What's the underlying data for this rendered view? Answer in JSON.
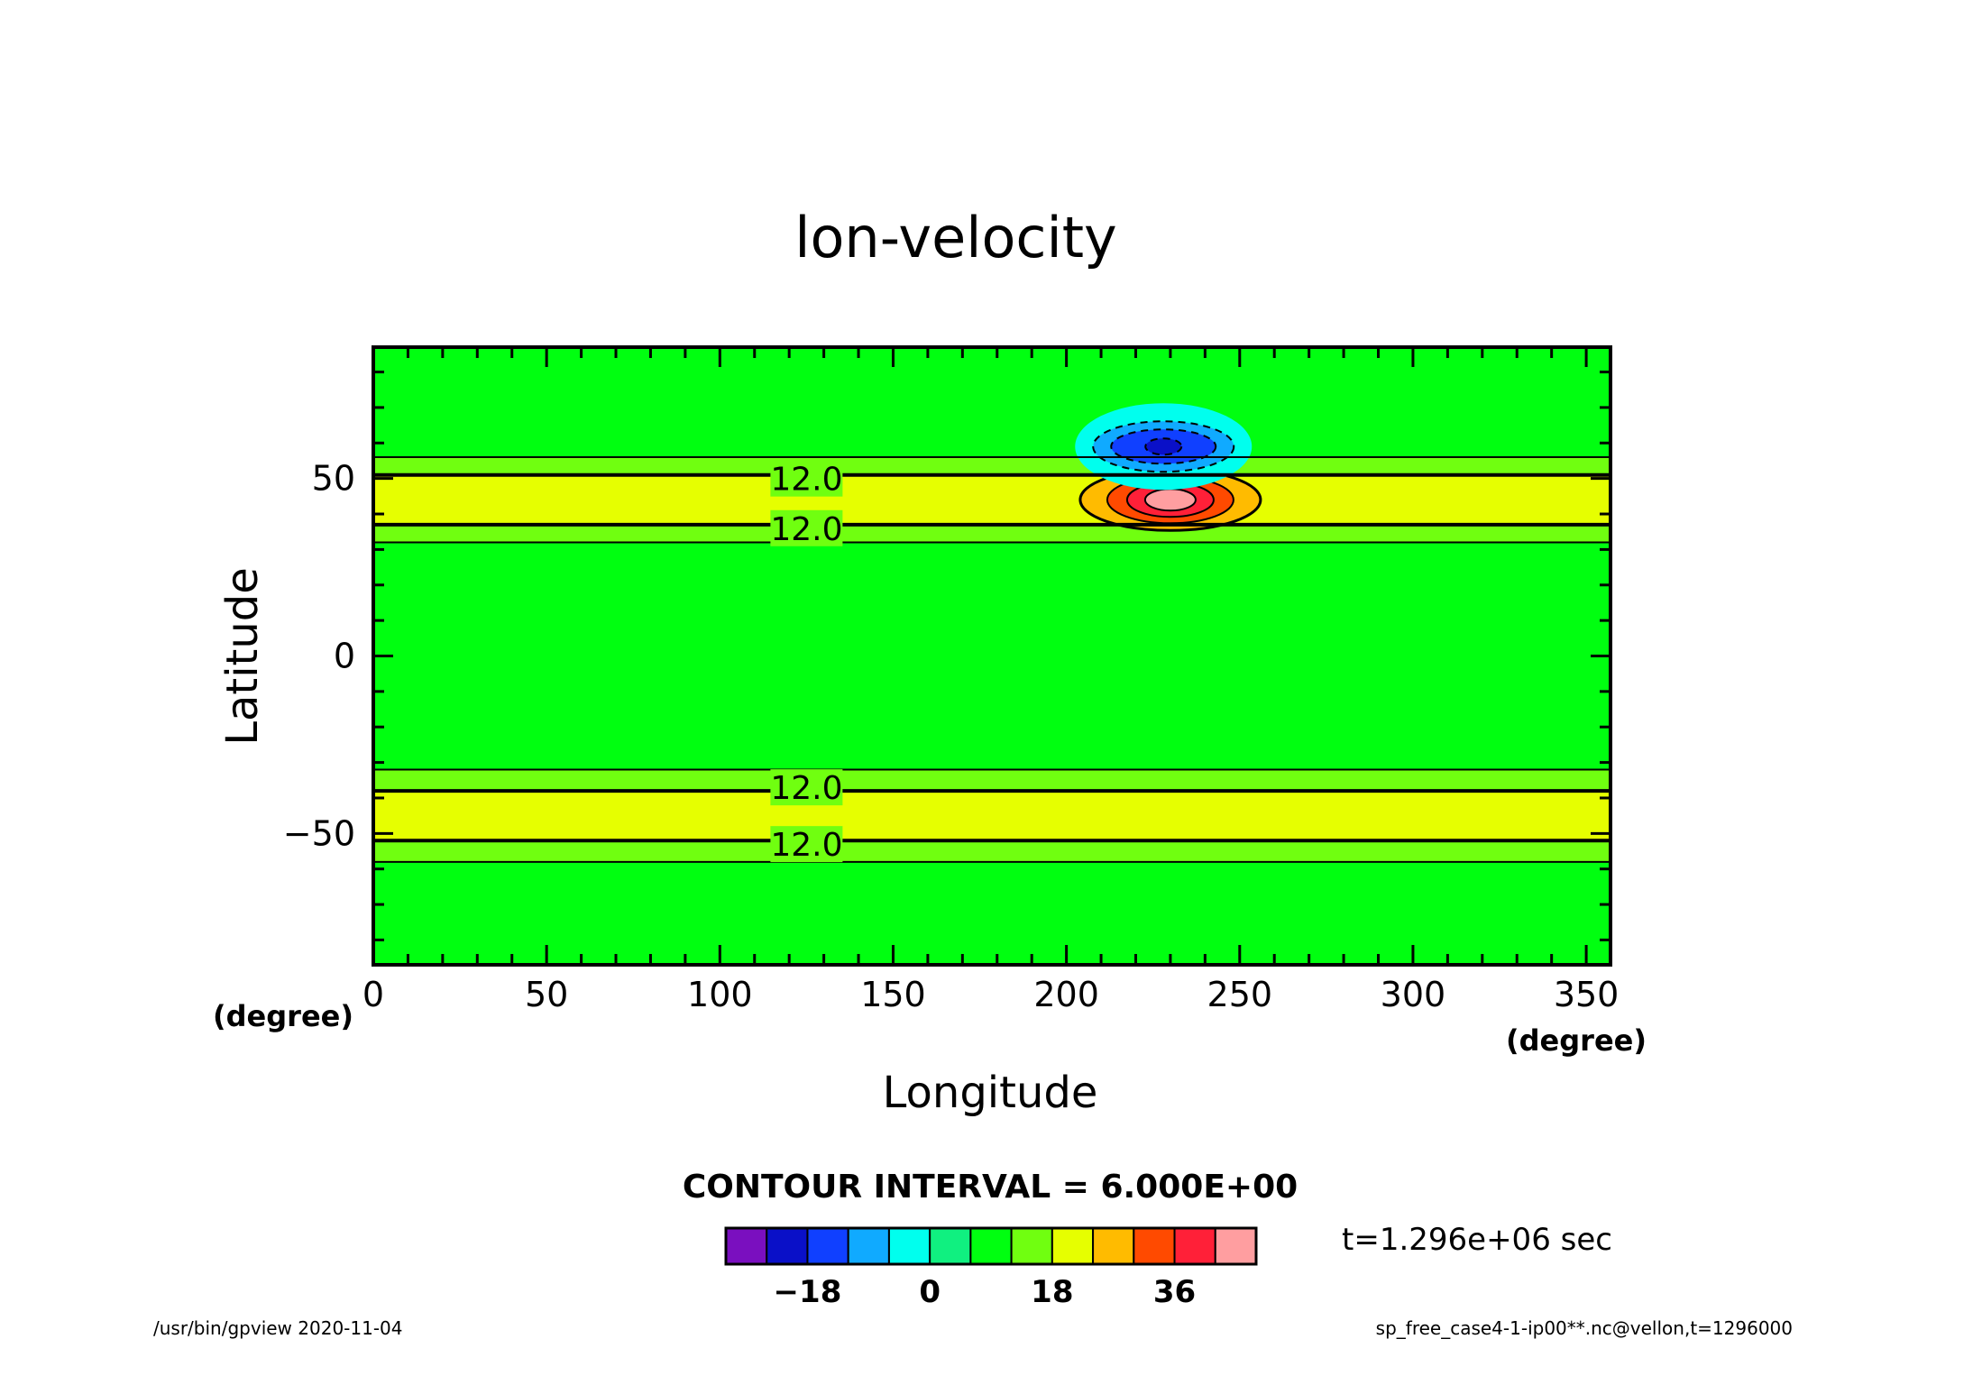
{
  "chart_data": {
    "type": "heatmap",
    "title": "lon-velocity",
    "xlabel": "Longitude",
    "ylabel": "Latitude",
    "x_unit": "(degree)",
    "y_unit": "(degree)",
    "xlim": [
      0,
      357
    ],
    "ylim": [
      -87,
      87
    ],
    "x_ticks": [
      0,
      50,
      100,
      150,
      200,
      250,
      300,
      350
    ],
    "y_ticks": [
      50,
      0,
      -50
    ],
    "y_tick_labels": [
      "50",
      "0",
      "−50"
    ],
    "contour_interval_text": "CONTOUR INTERVAL = 6.000E+00",
    "contour_labels": [
      {
        "text": "12.0",
        "lon": 125,
        "lat": 50
      },
      {
        "text": "12.0",
        "lon": 125,
        "lat": 36
      },
      {
        "text": "12.0",
        "lon": 125,
        "lat": -37
      },
      {
        "text": "12.0",
        "lon": 125,
        "lat": -53
      }
    ],
    "bands": [
      {
        "lat_from": 87,
        "lat_to": 56,
        "value": 6
      },
      {
        "lat_from": 56,
        "lat_to": 51,
        "value": 12
      },
      {
        "lat_from": 51,
        "lat_to": 37,
        "value": 18
      },
      {
        "lat_from": 37,
        "lat_to": 32,
        "value": 12
      },
      {
        "lat_from": 32,
        "lat_to": -32,
        "value": 6
      },
      {
        "lat_from": -32,
        "lat_to": -38,
        "value": 12
      },
      {
        "lat_from": -38,
        "lat_to": -52,
        "value": 18
      },
      {
        "lat_from": -52,
        "lat_to": -58,
        "value": 12
      },
      {
        "lat_from": -58,
        "lat_to": -87,
        "value": 6
      }
    ],
    "features": [
      {
        "kind": "max",
        "lon": 230,
        "lat": 44,
        "value": 42
      },
      {
        "kind": "min",
        "lon": 228,
        "lat": 59,
        "value": -24
      }
    ],
    "colorbar": {
      "levels": [
        -30,
        -24,
        -18,
        -12,
        -6,
        0,
        6,
        12,
        18,
        24,
        30,
        36,
        42,
        48
      ],
      "colors": [
        "#7a0fbf",
        "#0a10c8",
        "#1040ff",
        "#10aaff",
        "#00ffee",
        "#10f080",
        "#00ff10",
        "#70ff10",
        "#e6ff00",
        "#ffbb00",
        "#ff4a00",
        "#ff2038",
        "#ff9ea0"
      ],
      "tick_values": [
        -18,
        0,
        18,
        36
      ],
      "tick_labels": [
        "−18",
        "0",
        "18",
        "36"
      ]
    },
    "time_label": "t=1.296e+06 sec"
  },
  "footer": {
    "left": "/usr/bin/gpview   2020-11-04",
    "right": "sp_free_case4-1-ip00**.nc@vellon,t=1296000"
  }
}
